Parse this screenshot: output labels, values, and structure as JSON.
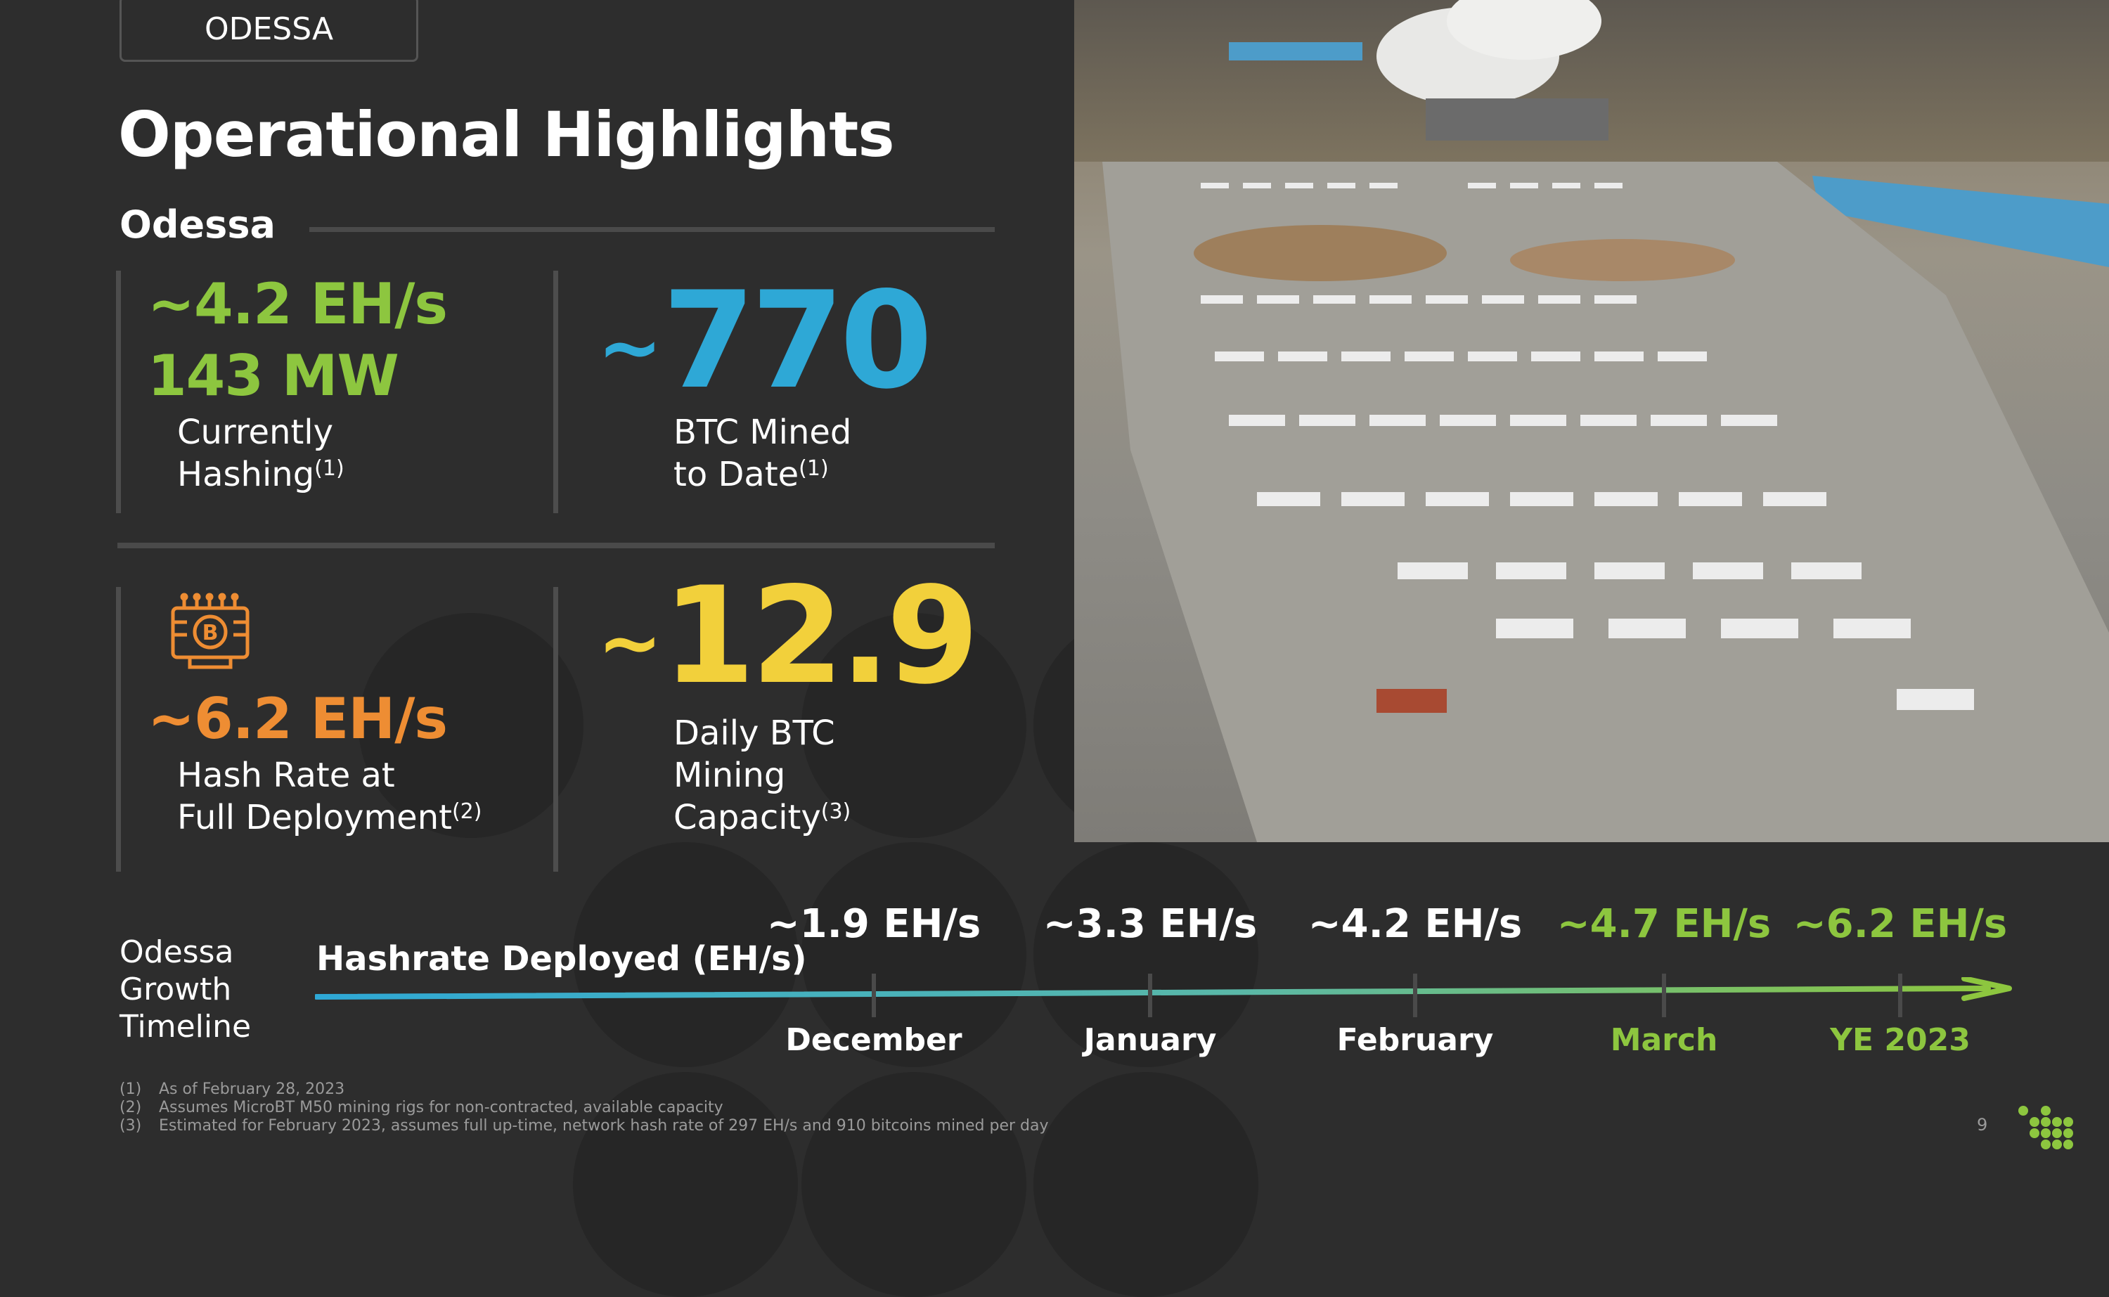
{
  "location_tag": "ODESSA",
  "title": "Operational Highlights",
  "section": "Odessa",
  "metrics": {
    "hashing": {
      "value1": "~4.2 EH/s",
      "value2": "143 MW",
      "line1": "Currently",
      "line2": "Hashing",
      "note": "(1)"
    },
    "btc_mined": {
      "tilde": "~",
      "value": "770",
      "line1": "BTC Mined",
      "line2": "to Date",
      "note": "(1)"
    },
    "full_deployment": {
      "value": "~6.2 EH/s",
      "line1": "Hash Rate at",
      "line2": "Full Deployment",
      "note": "(2)"
    },
    "daily_capacity": {
      "tilde": "~",
      "value": "12.9",
      "line1": "Daily BTC",
      "line2": "Mining",
      "line3": "Capacity",
      "note": "(3)"
    }
  },
  "timeline": {
    "side_label": [
      "Odessa",
      "Growth",
      "Timeline"
    ],
    "title": "Hashrate Deployed (EH/s)",
    "points": [
      {
        "value": "~1.9 EH/s",
        "month": "December"
      },
      {
        "value": "~3.3 EH/s",
        "month": "January"
      },
      {
        "value": "~4.2 EH/s",
        "month": "February"
      },
      {
        "value": "~4.7 EH/s",
        "month": "March"
      },
      {
        "value": "~6.2 EH/s",
        "month": "YE 2023"
      }
    ]
  },
  "footnotes": [
    {
      "num": "(1)",
      "text": "As of February 28, 2023"
    },
    {
      "num": "(2)",
      "text": "Assumes MicroBT M50 mining rigs for non-contracted, available capacity"
    },
    {
      "num": "(3)",
      "text": "Estimated for February 2023, assumes full up-time, network hash rate of 297 EH/s and 910 bitcoins mined per day"
    }
  ],
  "page_number": "9",
  "colors": {
    "green": "#8dc63f",
    "blue": "#2ea8d6",
    "orange": "#ee8d33",
    "yellow": "#f2d03b",
    "background": "#2d2d2d"
  },
  "icons": {
    "chip": "bitcoin-chip-icon",
    "logo": "dot-grid-logo-icon"
  }
}
